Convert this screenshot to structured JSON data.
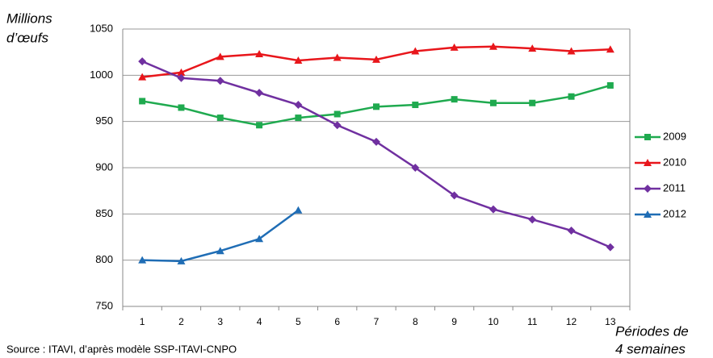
{
  "chart_data": {
    "type": "line",
    "y_label": [
      "Millions",
      "d’œufs"
    ],
    "x_label": [
      "Périodes de",
      "4 semaines"
    ],
    "source": "Source : ITAVI, d’après modèle SSP-ITAVI-CNPO",
    "categories": [
      1,
      2,
      3,
      4,
      5,
      6,
      7,
      8,
      9,
      10,
      11,
      12,
      13
    ],
    "series": [
      {
        "name": "2009",
        "color": "#1faa4f",
        "marker": "square",
        "values": [
          972,
          965,
          954,
          946,
          954,
          958,
          966,
          968,
          974,
          970,
          970,
          977,
          989
        ]
      },
      {
        "name": "2010",
        "color": "#e8161b",
        "marker": "triangle",
        "values": [
          998,
          1003,
          1020,
          1023,
          1016,
          1019,
          1017,
          1026,
          1030,
          1031,
          1029,
          1026,
          1028
        ]
      },
      {
        "name": "2011",
        "color": "#7030a0",
        "marker": "diamond",
        "values": [
          1015,
          997,
          994,
          981,
          968,
          946,
          928,
          900,
          870,
          855,
          844,
          832,
          814
        ]
      },
      {
        "name": "2012",
        "color": "#1f6db5",
        "marker": "triangle",
        "values": [
          800,
          799,
          810,
          823,
          854,
          null,
          null,
          null,
          null,
          null,
          null,
          null,
          null
        ]
      }
    ],
    "ylim": [
      750,
      1050
    ],
    "yticks": [
      750,
      800,
      850,
      900,
      950,
      1000,
      1050
    ],
    "grid": true
  }
}
